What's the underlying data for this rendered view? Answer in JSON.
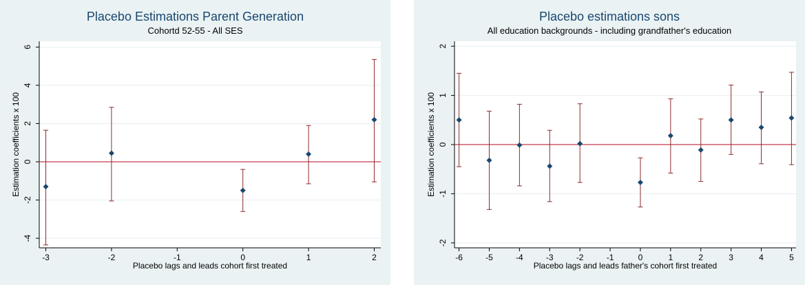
{
  "chart_data": [
    {
      "type": "scatter",
      "title": "Placebo Estimations Parent Generation",
      "subtitle": "Cohortd 52-55 - All SES",
      "xlabel": "Placebo lags and leads cohort first treated",
      "ylabel": "Estimation coefficients x 100",
      "x_ticks": [
        -3,
        -2,
        -1,
        0,
        1,
        2
      ],
      "y_ticks": [
        -4,
        -2,
        0,
        2,
        4,
        6
      ],
      "y_tick_labels": [
        "-4",
        "-2",
        "0",
        "2",
        "4",
        "6"
      ],
      "xlim": [
        -3.1,
        2.1
      ],
      "ylim": [
        -4.5,
        6.3
      ],
      "reference_line_y": 0,
      "points": [
        {
          "x": -3,
          "y": -1.3,
          "ci_low": -4.35,
          "ci_high": 1.65
        },
        {
          "x": -2,
          "y": 0.45,
          "ci_low": -2.05,
          "ci_high": 2.85
        },
        {
          "x": 0,
          "y": -1.5,
          "ci_low": -2.6,
          "ci_high": -0.4
        },
        {
          "x": 1,
          "y": 0.4,
          "ci_low": -1.15,
          "ci_high": 1.9
        },
        {
          "x": 2,
          "y": 2.2,
          "ci_low": -1.05,
          "ci_high": 5.35
        }
      ]
    },
    {
      "type": "scatter",
      "title": "Placebo estimations sons",
      "subtitle": "All education backgrounds - including grandfather's education",
      "xlabel": "Placebo lags and leads father's cohort first treated",
      "ylabel": "Estimation coefficients x 100",
      "x_ticks": [
        -6,
        -5,
        -4,
        -3,
        -2,
        -1,
        0,
        1,
        2,
        3,
        4,
        5
      ],
      "y_ticks": [
        -2,
        -1,
        0,
        1,
        2
      ],
      "y_tick_labels": [
        "-2",
        "-1",
        "0",
        "1",
        "2"
      ],
      "xlim": [
        -6.15,
        5.15
      ],
      "ylim": [
        -2.1,
        2.1
      ],
      "reference_line_y": 0,
      "points": [
        {
          "x": -6,
          "y": 0.5,
          "ci_low": -0.45,
          "ci_high": 1.45
        },
        {
          "x": -5,
          "y": -0.32,
          "ci_low": -1.32,
          "ci_high": 0.68
        },
        {
          "x": -4,
          "y": -0.01,
          "ci_low": -0.84,
          "ci_high": 0.82
        },
        {
          "x": -3,
          "y": -0.44,
          "ci_low": -1.16,
          "ci_high": 0.29
        },
        {
          "x": -2,
          "y": 0.02,
          "ci_low": -0.77,
          "ci_high": 0.83
        },
        {
          "x": 0,
          "y": -0.77,
          "ci_low": -1.27,
          "ci_high": -0.27
        },
        {
          "x": 1,
          "y": 0.18,
          "ci_low": -0.58,
          "ci_high": 0.93
        },
        {
          "x": 2,
          "y": -0.11,
          "ci_low": -0.75,
          "ci_high": 0.52
        },
        {
          "x": 3,
          "y": 0.5,
          "ci_low": -0.2,
          "ci_high": 1.21
        },
        {
          "x": 4,
          "y": 0.35,
          "ci_low": -0.39,
          "ci_high": 1.07
        },
        {
          "x": 5,
          "y": 0.54,
          "ci_low": -0.41,
          "ci_high": 1.47
        }
      ]
    }
  ]
}
